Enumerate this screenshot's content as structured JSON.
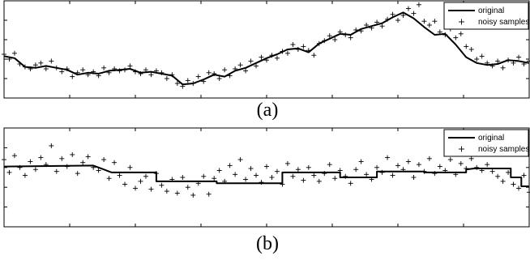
{
  "chart_data": [
    {
      "type": "line",
      "panel_label": "(a)",
      "legend": {
        "position": "top-right",
        "entries": [
          "original",
          "noisy samples"
        ]
      },
      "grid": false,
      "xlim": [
        0,
        100
      ],
      "ylim": [
        0,
        10
      ],
      "x_ticks": [
        0,
        12.5,
        25,
        37.5,
        50,
        62.5,
        75,
        87.5,
        100
      ],
      "y_ticks": [
        0,
        2,
        4,
        6,
        8,
        10
      ],
      "series": [
        {
          "name": "original",
          "style": "line",
          "x": [
            0,
            2,
            4,
            6,
            8,
            10,
            12,
            14,
            16,
            18,
            20,
            22,
            24,
            26,
            28,
            30,
            32,
            34,
            36,
            38,
            40,
            42,
            44,
            46,
            48,
            50,
            52,
            54,
            56,
            58,
            60,
            62,
            64,
            66,
            68,
            70,
            72,
            74,
            76,
            78,
            80,
            82,
            84,
            86,
            88,
            90,
            92,
            94,
            96,
            98,
            100
          ],
          "y": [
            4.3,
            4.1,
            3.2,
            3.1,
            3.3,
            3.1,
            2.9,
            2.4,
            2.6,
            2.5,
            2.8,
            2.9,
            3.0,
            2.6,
            2.7,
            2.5,
            2.3,
            1.4,
            1.5,
            1.9,
            2.4,
            2.2,
            2.8,
            3.1,
            3.6,
            4.1,
            4.5,
            5.0,
            5.1,
            4.7,
            5.6,
            6.1,
            6.6,
            6.5,
            7.1,
            7.4,
            7.7,
            8.3,
            8.8,
            8.2,
            7.3,
            6.5,
            6.6,
            5.5,
            4.2,
            3.6,
            3.4,
            3.5,
            3.9,
            3.8,
            3.6
          ]
        },
        {
          "name": "noisy samples",
          "style": "marker-plus",
          "x": [
            0,
            1,
            2,
            3,
            4,
            5,
            6,
            7,
            8,
            9,
            10,
            11,
            12,
            13,
            14,
            15,
            16,
            17,
            18,
            19,
            20,
            21,
            22,
            23,
            24,
            25,
            26,
            27,
            28,
            29,
            30,
            31,
            32,
            33,
            34,
            35,
            36,
            37,
            38,
            39,
            40,
            41,
            42,
            43,
            44,
            45,
            46,
            47,
            48,
            49,
            50,
            51,
            52,
            53,
            54,
            55,
            56,
            57,
            58,
            59,
            60,
            61,
            62,
            63,
            64,
            65,
            66,
            67,
            68,
            69,
            70,
            71,
            72,
            73,
            74,
            75,
            76,
            77,
            78,
            79,
            80,
            81,
            82,
            83,
            84,
            85,
            86,
            87,
            88,
            89,
            90,
            91,
            92,
            93,
            94,
            95,
            96,
            97,
            98,
            99,
            100
          ],
          "y": [
            4.5,
            4.0,
            4.6,
            3.5,
            3.2,
            3.0,
            3.4,
            3.6,
            3.0,
            3.8,
            3.1,
            2.7,
            3.0,
            2.2,
            2.6,
            2.9,
            2.4,
            2.7,
            2.3,
            3.1,
            2.6,
            3.0,
            2.8,
            2.9,
            3.3,
            2.7,
            2.5,
            2.9,
            2.4,
            2.8,
            2.6,
            2.0,
            2.4,
            1.5,
            1.2,
            1.8,
            1.5,
            2.2,
            1.7,
            2.6,
            2.5,
            2.0,
            2.9,
            2.3,
            3.0,
            3.4,
            2.8,
            3.8,
            3.3,
            4.2,
            3.9,
            4.4,
            4.1,
            4.8,
            4.6,
            5.5,
            5.0,
            5.3,
            4.9,
            4.4,
            5.6,
            5.9,
            6.4,
            6.0,
            6.8,
            6.5,
            6.2,
            7.0,
            6.9,
            7.5,
            7.2,
            7.8,
            7.4,
            8.1,
            8.6,
            8.0,
            8.5,
            9.2,
            8.7,
            9.6,
            7.9,
            7.5,
            7.9,
            6.8,
            6.5,
            7.1,
            6.2,
            6.6,
            5.3,
            5.0,
            4.0,
            4.3,
            3.6,
            3.3,
            3.8,
            3.1,
            3.9,
            3.6,
            4.2,
            3.5,
            3.8
          ]
        }
      ]
    },
    {
      "type": "line",
      "panel_label": "(b)",
      "legend": {
        "position": "top-right",
        "entries": [
          "original",
          "noisy samples"
        ]
      },
      "grid": false,
      "xlim": [
        0,
        100
      ],
      "ylim": [
        0,
        10
      ],
      "x_ticks": [
        0,
        12.5,
        25,
        37.5,
        50,
        62.5,
        75,
        87.5,
        100
      ],
      "y_ticks": [
        0,
        2,
        4,
        6,
        8,
        10
      ],
      "series": [
        {
          "name": "original",
          "style": "step",
          "x": [
            0,
            17,
            17,
            20.5,
            29,
            29,
            40.5,
            40.5,
            53,
            53,
            64,
            64,
            71,
            71,
            80,
            80,
            88,
            88,
            89.5,
            96.5,
            96.5,
            98.5,
            98.5,
            100
          ],
          "y": [
            6.1,
            6.2,
            6.2,
            5.5,
            5.5,
            4.6,
            4.6,
            4.4,
            4.4,
            5.5,
            5.5,
            5.0,
            5.0,
            5.6,
            5.6,
            5.5,
            5.5,
            5.8,
            5.9,
            5.9,
            5.0,
            5.0,
            4.1,
            4.1
          ]
        },
        {
          "name": "noisy samples",
          "style": "marker-plus",
          "x": [
            0,
            1,
            2,
            3,
            4,
            5,
            6,
            7,
            8,
            9,
            10,
            11,
            12,
            13,
            14,
            15,
            16,
            17,
            18,
            19,
            20,
            21,
            22,
            23,
            24,
            25,
            26,
            27,
            28,
            29,
            30,
            31,
            32,
            33,
            34,
            35,
            36,
            37,
            38,
            39,
            40,
            41,
            42,
            43,
            44,
            45,
            46,
            47,
            48,
            49,
            50,
            51,
            52,
            53,
            54,
            55,
            56,
            57,
            58,
            59,
            60,
            61,
            62,
            63,
            64,
            65,
            66,
            67,
            68,
            69,
            70,
            71,
            72,
            73,
            74,
            75,
            76,
            77,
            78,
            79,
            80,
            81,
            82,
            83,
            84,
            85,
            86,
            87,
            88,
            89,
            90,
            91,
            92,
            93,
            94,
            95,
            96,
            97,
            98,
            99,
            100
          ],
          "y": [
            6.8,
            5.5,
            7.2,
            6.0,
            5.2,
            6.6,
            5.8,
            7.0,
            6.3,
            8.2,
            5.6,
            6.9,
            6.1,
            7.3,
            5.4,
            6.5,
            7.1,
            6.0,
            5.7,
            6.8,
            4.9,
            6.5,
            5.2,
            4.3,
            6.0,
            3.9,
            4.6,
            5.1,
            3.8,
            5.4,
            4.2,
            3.6,
            4.8,
            3.4,
            5.0,
            4.0,
            3.2,
            4.4,
            5.1,
            3.3,
            4.9,
            5.7,
            4.6,
            6.2,
            5.3,
            6.8,
            4.8,
            5.9,
            5.2,
            4.5,
            6.1,
            5.0,
            5.6,
            4.3,
            6.4,
            5.1,
            5.8,
            4.7,
            6.0,
            5.2,
            4.6,
            5.4,
            6.3,
            4.9,
            5.7,
            5.1,
            4.4,
            5.8,
            6.6,
            5.3,
            4.8,
            6.0,
            5.5,
            7.0,
            5.2,
            6.2,
            5.8,
            6.6,
            5.0,
            6.3,
            5.6,
            6.9,
            5.4,
            6.1,
            5.7,
            6.8,
            5.3,
            6.4,
            5.9,
            6.9,
            6.0,
            5.7,
            6.3,
            5.6,
            5.1,
            4.6,
            5.5,
            4.3,
            3.9,
            5.2,
            3.5
          ]
        }
      ]
    }
  ]
}
